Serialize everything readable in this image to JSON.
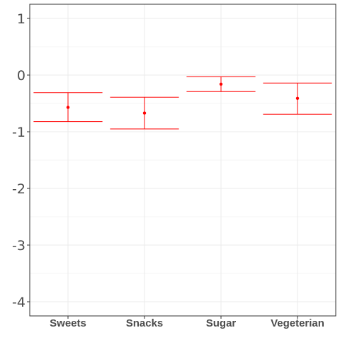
{
  "chart_data": {
    "type": "scatter",
    "subtype": "point-with-errorbars",
    "categories": [
      "Sweets",
      "Snacks",
      "Sugar",
      "Vegeterian"
    ],
    "series": [
      {
        "values": [
          -0.57,
          -0.67,
          -0.16,
          -0.41
        ],
        "lower": [
          -0.82,
          -0.95,
          -0.29,
          -0.69
        ],
        "upper": [
          -0.31,
          -0.39,
          -0.03,
          -0.14
        ],
        "color": "#ff0000"
      }
    ],
    "yticks": [
      1,
      0,
      -1,
      -2,
      -3,
      -4
    ],
    "ylim": [
      -4.25,
      1.25
    ],
    "title": "",
    "xlabel": "",
    "ylabel": "",
    "grid": true,
    "legend": "none",
    "colors": {
      "grid_major": "#ebebeb",
      "grid_minor": "#f4f4f4",
      "axis": "#333333",
      "point": "#ff0000"
    }
  }
}
